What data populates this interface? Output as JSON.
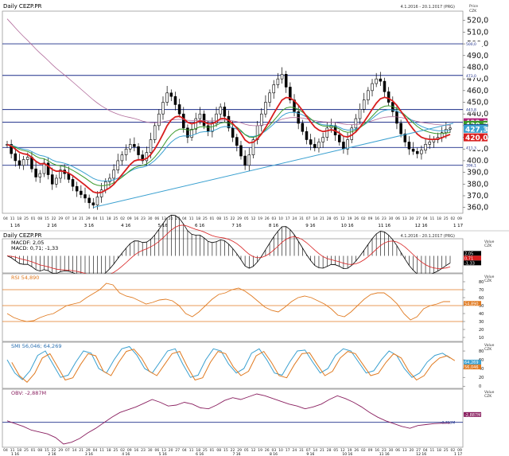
{
  "chart_data": {
    "type": "line",
    "price_panel": {
      "title": "Daily CEZP.PR",
      "date_range": "4.1.2016 - 20.1.2017 (PRG)",
      "axis_caption": [
        "Price",
        "CZK"
      ],
      "y_ticks": [
        360,
        370,
        380,
        390,
        400,
        410,
        420,
        430,
        440,
        450,
        460,
        470,
        480,
        490,
        500,
        510,
        520
      ],
      "y_tick_labels": [
        "360,0",
        "370,0",
        "380,0",
        "390,0",
        "400,0",
        "410,0",
        "420,0",
        "430,0",
        "440,0",
        "450,0",
        "460,0",
        "470,0",
        "480,0",
        "490,0",
        "500,0",
        "510,0",
        "520,0"
      ],
      "ylim": [
        355,
        528
      ],
      "horizontal_levels": [
        {
          "value": 500.0,
          "label": "500,0"
        },
        {
          "value": 473.0,
          "label": "473,0"
        },
        {
          "value": 443.8,
          "label": "443,8"
        },
        {
          "value": 432.9,
          "label": "432,9"
        },
        {
          "value": 411.3,
          "label": "411,3"
        },
        {
          "value": 396.1,
          "label": "396,1"
        }
      ],
      "last_value_badges": [
        {
          "label": "432,9",
          "value": 432.9,
          "color": "#b0207a"
        },
        {
          "label": "430,7",
          "value": 430.7,
          "color": "#3a9a2a"
        },
        {
          "label": "427,8",
          "value": 427.8,
          "color": "#1b2d8a"
        },
        {
          "label": "427,3",
          "value": 427.3,
          "color": "#3aa0d0"
        },
        {
          "label": "420,0",
          "value": 420.0,
          "color": "#d81e1e"
        }
      ],
      "series_colors": {
        "candles": "#000000",
        "ema_fast": "#d81e1e",
        "ema_mid": "#3a9a2a",
        "ema_slow": "#3aa0d0",
        "ma_long": "#b06a9a",
        "trendline": "#3aa0d0"
      },
      "x_tick_labels": [
        "04",
        "11",
        "18",
        "25",
        "01",
        "08",
        "15",
        "22",
        "29",
        "07",
        "14",
        "21",
        "29",
        "04",
        "11",
        "18",
        "25",
        "02",
        "09",
        "16",
        "23",
        "30",
        "06",
        "13",
        "20",
        "27",
        "04",
        "11",
        "18",
        "25",
        "01",
        "08",
        "15",
        "22",
        "29",
        "05",
        "12",
        "19",
        "26",
        "03",
        "10",
        "17",
        "24",
        "31",
        "07",
        "14",
        "21",
        "28",
        "05",
        "12",
        "19",
        "26",
        "02",
        "09",
        "16",
        "23",
        "30",
        "06",
        "13",
        "20",
        "27",
        "04",
        "11",
        "18",
        "25",
        "02",
        "09"
      ],
      "month_labels": [
        "1 16",
        "2 16",
        "3 16",
        "4 16",
        "5 16",
        "6 16",
        "7 16",
        "8 16",
        "9 16",
        "10 16",
        "11 16",
        "12 16",
        "1 17"
      ],
      "close": [
        414,
        406,
        400,
        396,
        401,
        403,
        393,
        386,
        389,
        398,
        388,
        380,
        385,
        392,
        389,
        384,
        378,
        374,
        371,
        368,
        364,
        362,
        369,
        375,
        382,
        385,
        392,
        400,
        405,
        410,
        414,
        412,
        405,
        400,
        407,
        418,
        430,
        440,
        450,
        458,
        455,
        448,
        440,
        428,
        420,
        427,
        436,
        440,
        430,
        425,
        432,
        440,
        446,
        438,
        428,
        420,
        413,
        404,
        396,
        405,
        418,
        430,
        440,
        450,
        458,
        465,
        470,
        474,
        463,
        452,
        442,
        432,
        425,
        418,
        414,
        411,
        416,
        420,
        428,
        430,
        422,
        416,
        410,
        418,
        428,
        436,
        444,
        452,
        460,
        466,
        470,
        468,
        459,
        450,
        442,
        432,
        423,
        416,
        410,
        408,
        406,
        409,
        414,
        416,
        418,
        420,
        424,
        427,
        428
      ]
    },
    "indicators": [
      {
        "panel": "macd",
        "title": "Daily CEZP.PR",
        "date_range": "4.1.2016 - 20.1.2017 (PRG)",
        "legend": [
          "MACDF: 2,05",
          "MACD: 0,71; -1,33"
        ],
        "axis_caption": [
          "Value",
          "CZK"
        ],
        "ylim": [
          -12,
          12
        ],
        "badges": [
          {
            "label": "2,05",
            "color": "#000000"
          },
          {
            "label": "0,71",
            "color": "#d81e1e"
          },
          {
            "label": "-1,33",
            "color": "#000000"
          }
        ]
      },
      {
        "panel": "rsi",
        "legend": [
          "RSI 54,890"
        ],
        "axis_caption": [
          "Value",
          "CZK"
        ],
        "y_ticks": [
          10,
          20,
          30,
          40,
          50,
          60,
          70,
          80
        ],
        "ylim": [
          5,
          90
        ],
        "levels": [
          30,
          50,
          70
        ],
        "badges": [
          {
            "label": "54,890",
            "color": "#e07a20"
          }
        ],
        "values": [
          40,
          35,
          32,
          30,
          31,
          35,
          38,
          40,
          45,
          50,
          52,
          54,
          60,
          65,
          70,
          78,
          76,
          66,
          62,
          60,
          56,
          52,
          54,
          57,
          58,
          56,
          50,
          40,
          36,
          42,
          50,
          58,
          64,
          66,
          70,
          72,
          68,
          62,
          55,
          48,
          44,
          42,
          48,
          55,
          60,
          62,
          60,
          56,
          52,
          46,
          38,
          36,
          42,
          50,
          58,
          64,
          66,
          66,
          60,
          52,
          40,
          32,
          36,
          46,
          50,
          52,
          55,
          55
        ]
      },
      {
        "panel": "stochastic",
        "legend": [
          "SMI 56,046; 64,269"
        ],
        "axis_caption": [
          "Value",
          "CZK"
        ],
        "y_ticks": [
          0,
          20,
          40,
          60,
          80
        ],
        "ylim": [
          -5,
          100
        ],
        "badges": [
          {
            "label": "64,269",
            "color": "#3aa0d0"
          },
          {
            "label": "56,046",
            "color": "#e07a20"
          }
        ],
        "values": [
          60,
          30,
          15,
          35,
          70,
          80,
          50,
          20,
          25,
          55,
          80,
          75,
          40,
          30,
          60,
          85,
          90,
          70,
          40,
          30,
          55,
          80,
          85,
          50,
          20,
          25,
          60,
          85,
          80,
          50,
          30,
          40,
          75,
          85,
          60,
          30,
          25,
          55,
          80,
          82,
          55,
          30,
          40,
          70,
          85,
          80,
          55,
          30,
          35,
          60,
          80,
          70,
          40,
          20,
          30,
          55,
          70,
          75,
          64
        ]
      },
      {
        "panel": "obv",
        "legend": [
          "OBV: -2,887M"
        ],
        "axis_caption": [
          "Value",
          "CZK"
        ],
        "badges": [
          {
            "label": "-2,887M",
            "color": "#8a2060"
          }
        ],
        "level_label": "-2,723M",
        "values": [
          -2.4,
          -3.0,
          -3.6,
          -4.4,
          -4.8,
          -5.2,
          -6.0,
          -7.4,
          -7.0,
          -6.2,
          -5.0,
          -4.0,
          -2.8,
          -1.6,
          -0.6,
          0.0,
          0.6,
          1.4,
          2.2,
          1.6,
          0.8,
          1.0,
          1.6,
          1.2,
          0.4,
          0.2,
          1.0,
          2.0,
          2.6,
          2.2,
          2.8,
          3.4,
          3.0,
          2.4,
          1.8,
          1.2,
          0.8,
          0.2,
          0.6,
          1.2,
          2.2,
          3.0,
          2.4,
          1.6,
          0.6,
          -0.6,
          -1.6,
          -2.4,
          -3.0,
          -3.6,
          -4.0,
          -3.4,
          -3.2,
          -3.0,
          -2.9,
          -2.9
        ]
      }
    ]
  }
}
